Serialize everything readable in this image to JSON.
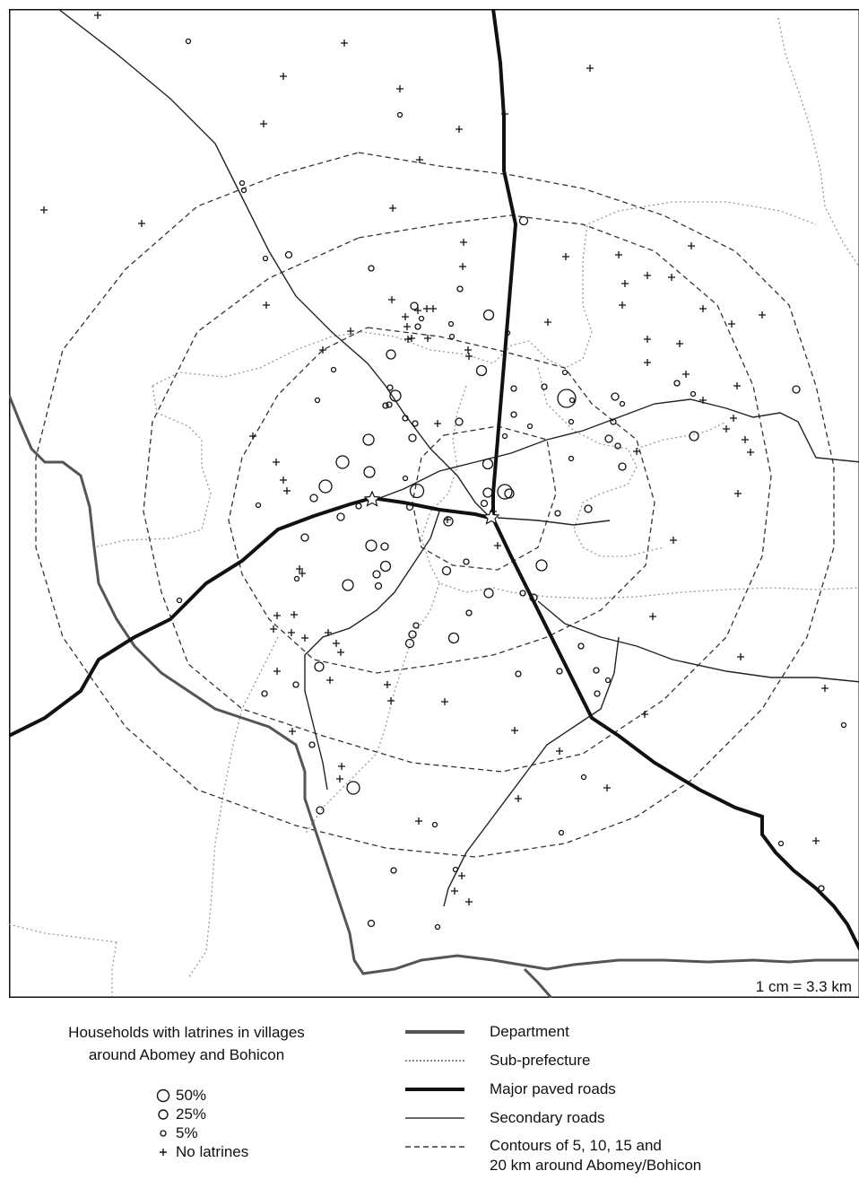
{
  "map": {
    "scale_text": "1 cm = 3.3 km",
    "colors": {
      "department": "#555555",
      "major_road": "#111111",
      "secondary_road": "#222222",
      "sub_prefecture": "#999999",
      "contour": "#333333",
      "frame": "#111111"
    },
    "town_marker_icons": [
      "star-icon",
      "star-icon"
    ]
  },
  "legend": {
    "title_line1": "Households with latrines in villages",
    "title_line2": "around Abomey and Bohicon",
    "sizes": [
      {
        "icon": "circle-large-icon",
        "label": "50%"
      },
      {
        "icon": "circle-medium-icon",
        "label": "25%"
      },
      {
        "icon": "circle-small-icon",
        "label": "5%"
      },
      {
        "icon": "plus-icon",
        "label": "No latrines"
      }
    ],
    "lines": [
      {
        "style": "department",
        "label": "Department"
      },
      {
        "style": "sub_prefecture",
        "label": "Sub-prefecture"
      },
      {
        "style": "major_road",
        "label": "Major paved roads"
      },
      {
        "style": "secondary_road",
        "label": "Secondary roads"
      },
      {
        "style": "contour",
        "label_line1": "Contours of 5, 10, 15 and",
        "label_line2": "20 km around Abomey/Bohicon"
      }
    ]
  }
}
